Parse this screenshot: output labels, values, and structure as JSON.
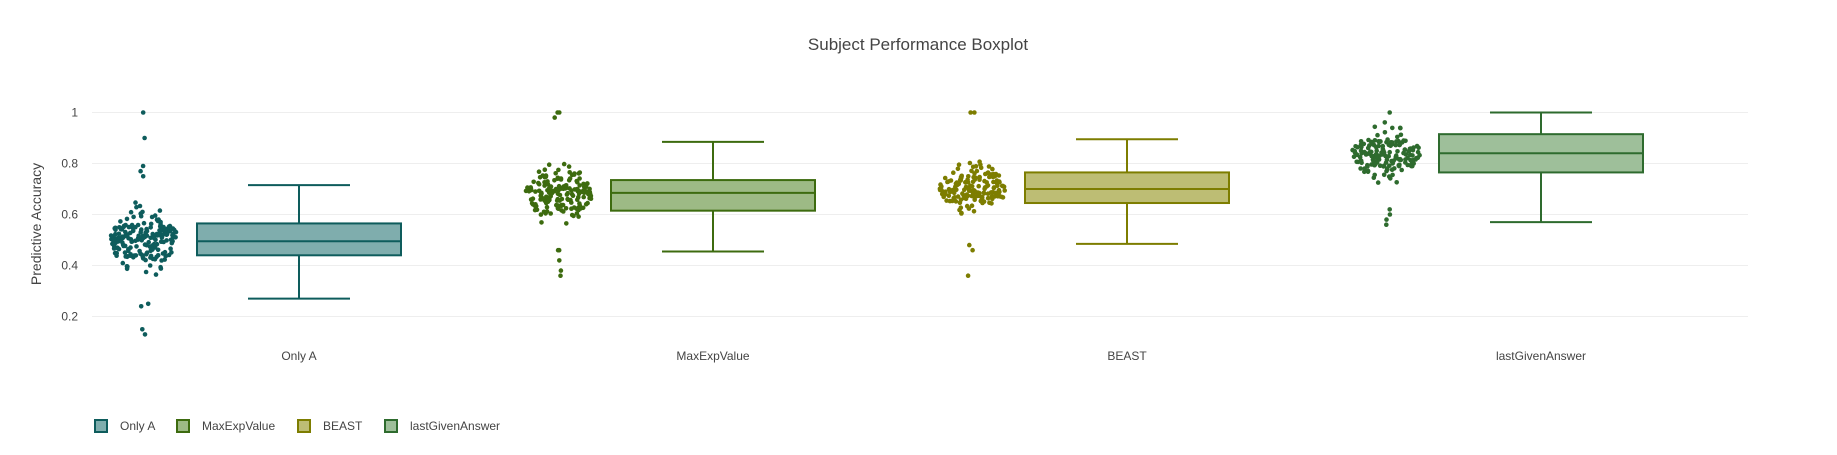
{
  "chart_data": {
    "type": "box",
    "title": "Subject Performance Boxplot",
    "ylabel": "Predictive Accuracy",
    "xlabel": "",
    "ylim": [
      0.1,
      1.05
    ],
    "yticks": [
      0.2,
      0.4,
      0.6,
      0.8,
      1
    ],
    "ytick_labels": [
      "0.2",
      "0.4",
      "0.6",
      "0.8",
      "1"
    ],
    "grid": true,
    "legend_position": "bottom-left",
    "categories": [
      "Only A",
      "MaxExpValue",
      "BEAST",
      "lastGivenAnswer"
    ],
    "series": [
      {
        "name": "Only A",
        "color": "#0e5c5c",
        "fill": "#7fadad",
        "min": 0.27,
        "q1": 0.44,
        "median": 0.495,
        "q3": 0.565,
        "max": 0.715,
        "points": {
          "n": 190,
          "center": 0.5,
          "spread": 0.09,
          "low": 0.12,
          "high": 1.0,
          "extra": [
            1.0,
            0.9,
            0.79,
            0.77,
            0.75,
            0.15,
            0.13,
            0.25,
            0.24
          ]
        }
      },
      {
        "name": "MaxExpValue",
        "color": "#3d6b0f",
        "fill": "#9dba85",
        "min": 0.455,
        "q1": 0.615,
        "median": 0.685,
        "q3": 0.735,
        "max": 0.885,
        "points": {
          "n": 170,
          "center": 0.68,
          "spread": 0.085,
          "low": 0.36,
          "high": 1.0,
          "extra": [
            1.0,
            1.0,
            0.98,
            0.36,
            0.38,
            0.42,
            0.46,
            0.46
          ]
        }
      },
      {
        "name": "BEAST",
        "color": "#7d7d00",
        "fill": "#bdbd74",
        "min": 0.485,
        "q1": 0.645,
        "median": 0.7,
        "q3": 0.765,
        "max": 0.895,
        "points": {
          "n": 165,
          "center": 0.7,
          "spread": 0.075,
          "low": 0.36,
          "high": 1.0,
          "extra": [
            1.0,
            1.0,
            0.36,
            0.46,
            0.48
          ]
        }
      },
      {
        "name": "lastGivenAnswer",
        "color": "#2e6b2e",
        "fill": "#9ebf9a",
        "min": 0.57,
        "q1": 0.765,
        "median": 0.84,
        "q3": 0.915,
        "max": 1.0,
        "points": {
          "n": 165,
          "center": 0.84,
          "spread": 0.075,
          "low": 0.56,
          "high": 1.0,
          "extra": [
            1.0,
            0.56,
            0.58,
            0.6,
            0.62
          ]
        }
      }
    ]
  }
}
